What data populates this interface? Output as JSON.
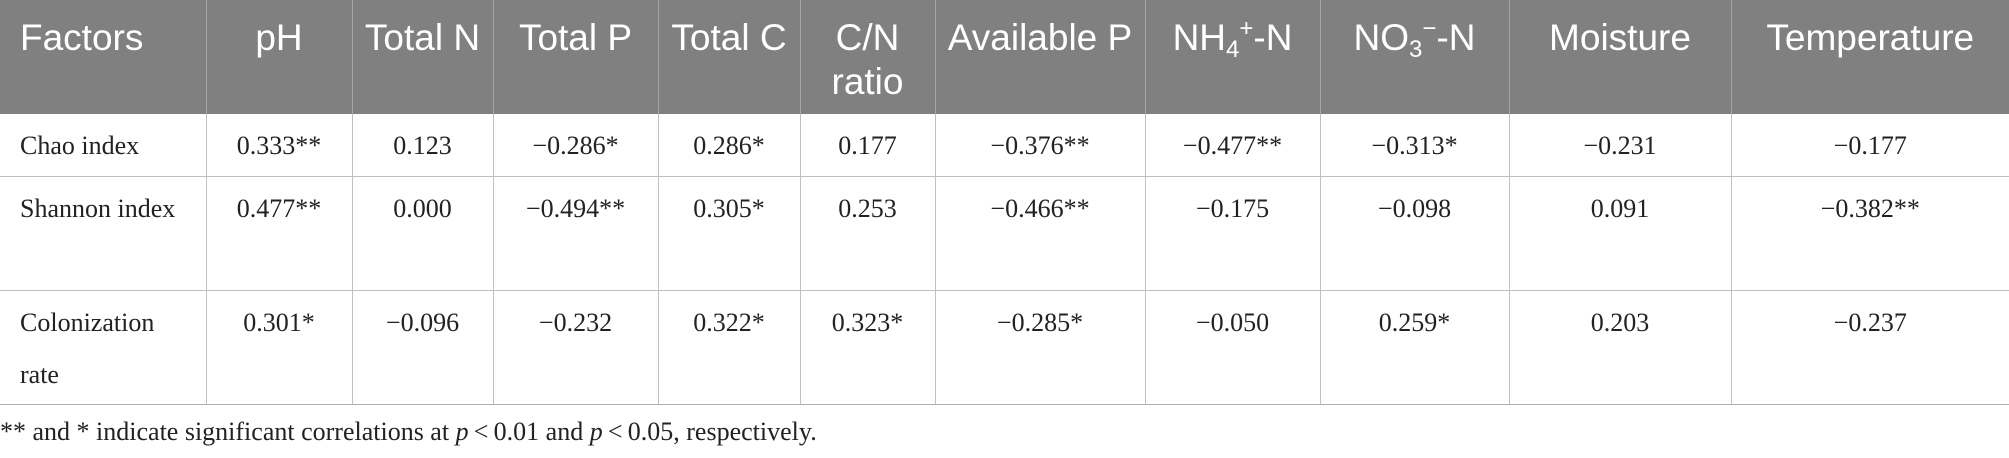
{
  "table": {
    "header": {
      "factors": "Factors",
      "ph": "pH",
      "total_n": "Total N",
      "total_p": "Total P",
      "total_c": "Total C",
      "cn_ratio": "C/N ratio",
      "available_p": "Available P",
      "nh4": {
        "base": "NH",
        "sub": "4",
        "sup": "+",
        "tail": "-N"
      },
      "no3": {
        "base": "NO",
        "sub": "3",
        "sup": "−",
        "tail": "-N"
      },
      "moisture": "Moisture",
      "temperature": "Temperature"
    },
    "rows": [
      {
        "label": "Chao index",
        "values": [
          "0.333**",
          "0.123",
          "−0.286*",
          "0.286*",
          "0.177",
          "−0.376**",
          "−0.477**",
          "−0.313*",
          "−0.231",
          "−0.177"
        ]
      },
      {
        "label": "Shannon index",
        "values": [
          "0.477**",
          "0.000",
          "−0.494**",
          "0.305*",
          "0.253",
          "−0.466**",
          "−0.175",
          "−0.098",
          "0.091",
          "−0.382**"
        ]
      },
      {
        "label": "Colonization rate",
        "values": [
          "0.301*",
          "−0.096",
          "−0.232",
          "0.322*",
          "0.323*",
          "−0.285*",
          "−0.050",
          "0.259*",
          "0.203",
          "−0.237"
        ]
      }
    ]
  },
  "footnote": {
    "part1": "** and * indicate significant correlations at ",
    "p1": "p",
    "part2": " < 0.01 and ",
    "p2": "p",
    "part3": " < 0.05, respectively."
  }
}
